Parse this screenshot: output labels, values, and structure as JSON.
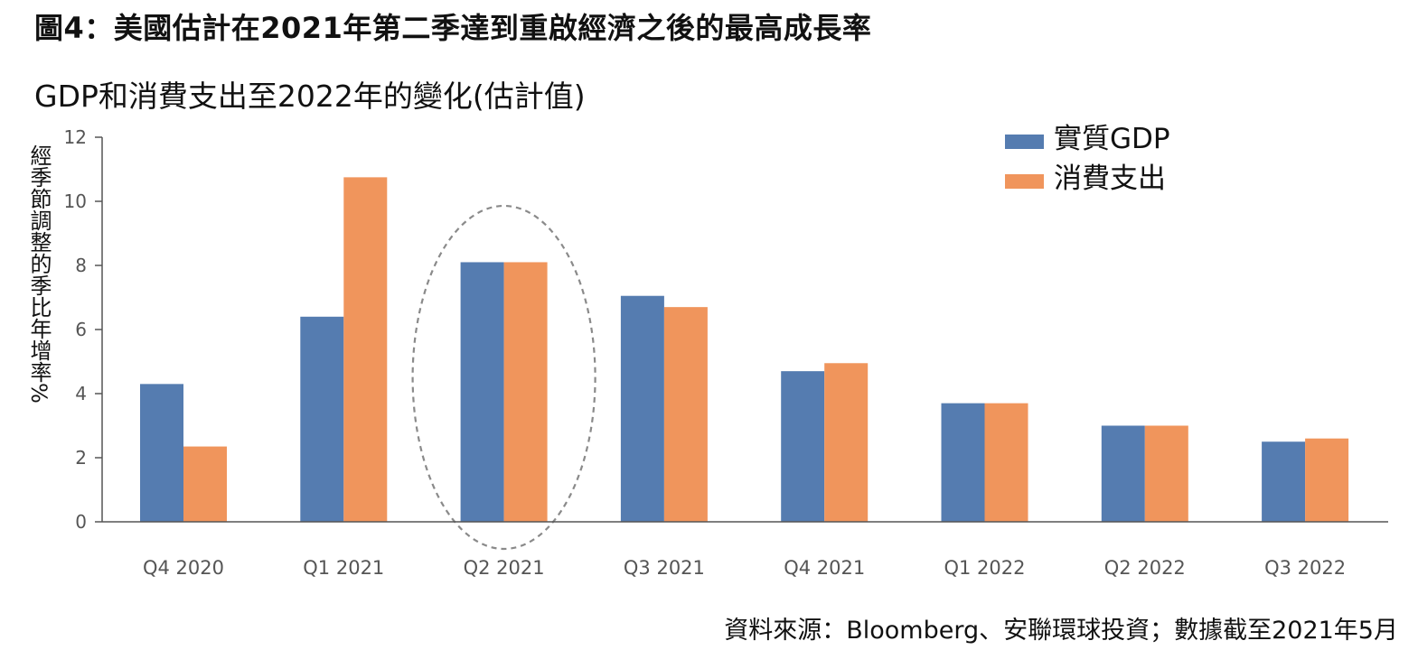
{
  "title": "圖4：美國估計在2021年第二季達到重啟經濟之後的最高成長率",
  "subtitle": "GDP和消費支出至2022年的變化(估計值)",
  "source": "資料來源：Bloomberg、安聯環球投資；數據截至2021年5月",
  "colors": {
    "real_gdp": "#557cb0",
    "consumer_spending": "#f0955c",
    "axis": "#555555",
    "highlight": "#8a8a8a"
  },
  "chart_data": {
    "type": "bar",
    "categories": [
      "Q4 2020",
      "Q1 2021",
      "Q2 2021",
      "Q3 2021",
      "Q4 2021",
      "Q1 2022",
      "Q2 2022",
      "Q3 2022"
    ],
    "series": [
      {
        "name": "實質GDP",
        "values": [
          4.3,
          6.4,
          8.1,
          7.05,
          4.7,
          3.7,
          3.0,
          2.5
        ]
      },
      {
        "name": "消費支出",
        "values": [
          2.35,
          10.75,
          8.1,
          6.7,
          4.95,
          3.7,
          3.0,
          2.6
        ]
      }
    ],
    "ylabel": "經季節調整的季比年增率%",
    "ylim": [
      0,
      12
    ],
    "yticks": [
      0,
      2,
      4,
      6,
      8,
      10,
      12
    ],
    "legend_position": "top-right",
    "grid": false,
    "highlighted_category": "Q2 2021"
  }
}
